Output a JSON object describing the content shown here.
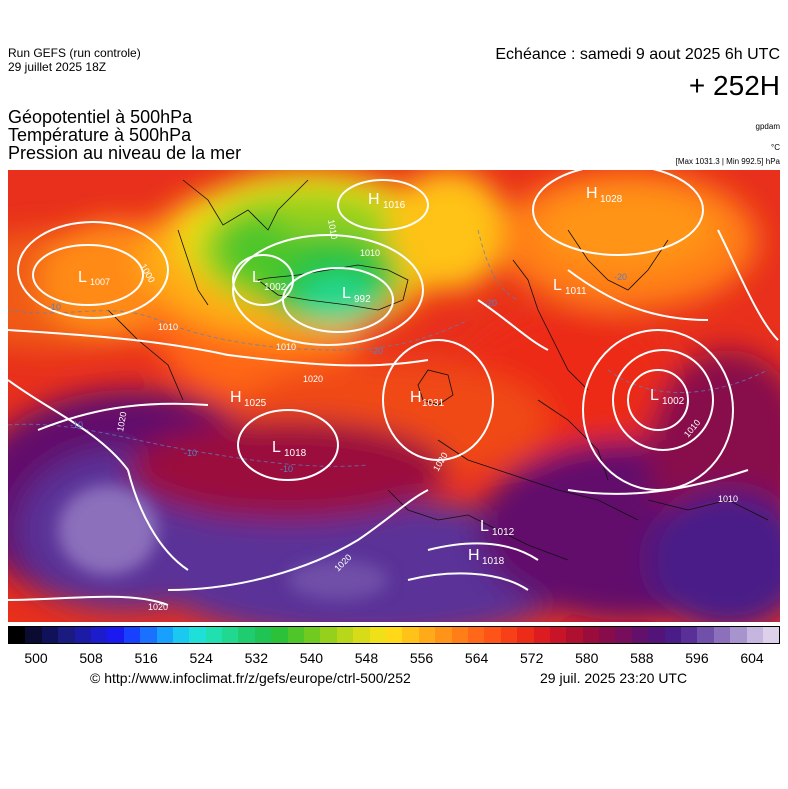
{
  "header": {
    "run_line1": "Run GEFS (run controle)",
    "run_line2": "29 juillet 2025 18Z",
    "echeance": "Echéance : samedi 9 aout 2025 6h UTC",
    "forecast_hour": "+ 252H"
  },
  "titles": {
    "line1": "Géopotentiel à 500hPa",
    "line2": "Température à 500hPa",
    "line3": "Pression au niveau de la mer"
  },
  "units": {
    "geopotential": "gpdam",
    "temperature": "°C",
    "pressure_stats": "[Max 1031.3 | Min 992.5] hPa"
  },
  "pressure_systems": [
    {
      "type": "H",
      "value": "1016"
    },
    {
      "type": "H",
      "value": "1028"
    },
    {
      "type": "L",
      "value": "1002"
    },
    {
      "type": "L",
      "value": "992"
    },
    {
      "type": "L",
      "value": "1011"
    },
    {
      "type": "L",
      "value": "1002"
    },
    {
      "type": "H",
      "value": "1025"
    },
    {
      "type": "H",
      "value": "1031"
    },
    {
      "type": "L",
      "value": "1018"
    },
    {
      "type": "L",
      "value": "1012"
    },
    {
      "type": "H",
      "value": "1018"
    },
    {
      "type": "L",
      "value": "1007"
    }
  ],
  "isobar_labels": [
    "1000",
    "1010",
    "1010",
    "1010",
    "1010",
    "1020",
    "1020",
    "1020",
    "1020",
    "1020",
    "1010",
    "1010"
  ],
  "temperature_labels": [
    "-10",
    "-10",
    "-10",
    "-10",
    "-20",
    "-20",
    "-20"
  ],
  "colorbar": {
    "ticks": [
      "500",
      "508",
      "516",
      "524",
      "532",
      "540",
      "548",
      "556",
      "564",
      "572",
      "580",
      "588",
      "596",
      "604"
    ],
    "colors": [
      "#000000",
      "#0a0a33",
      "#11115a",
      "#1a1a80",
      "#1b1ba6",
      "#1c1ccc",
      "#1a1af0",
      "#1840ff",
      "#1a70ff",
      "#18a0ff",
      "#1ac8f0",
      "#1ee0d8",
      "#20e0b0",
      "#20d890",
      "#1fcd70",
      "#1fc455",
      "#2bc23a",
      "#4ec62a",
      "#70ca20",
      "#95d01c",
      "#b8d61a",
      "#d8dc18",
      "#f0e018",
      "#ffd818",
      "#ffc218",
      "#ffaa18",
      "#ff9418",
      "#ff7e18",
      "#ff6818",
      "#ff5418",
      "#f84018",
      "#ec2c18",
      "#dc1c20",
      "#c81428",
      "#b01030",
      "#9a0c3c",
      "#880c4c",
      "#760e5c",
      "#62106c",
      "#521478",
      "#4a1c88",
      "#5a3098",
      "#7050a8",
      "#8c70bc",
      "#a894cc",
      "#c4b6de",
      "#dcd0ea"
    ]
  },
  "footer": {
    "url": "© http://www.infoclimat.fr/z/gefs/europe/ctrl-500/252",
    "timestamp": "29 juil. 2025 23:20 UTC"
  }
}
